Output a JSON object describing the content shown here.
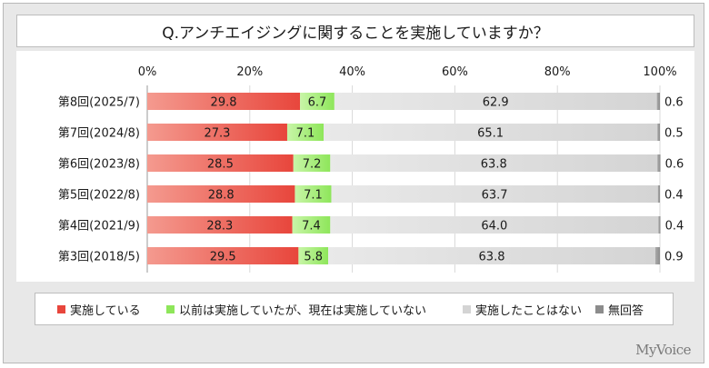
{
  "chart_data": {
    "type": "bar",
    "orientation": "horizontal",
    "stacked": true,
    "title": "Q.アンチエイジングに関することを実施していますか？",
    "categories": [
      "第8回(2025/7)",
      "第7回(2024/8)",
      "第6回(2023/8)",
      "第5回(2022/8)",
      "第4回(2021/9)",
      "第3回(2018/5)"
    ],
    "x_ticks": [
      "0%",
      "20%",
      "40%",
      "60%",
      "80%",
      "100%"
    ],
    "xlim": [
      0,
      100
    ],
    "series": [
      {
        "name": "実施している",
        "color": "#e8463c",
        "values": [
          29.8,
          27.3,
          28.5,
          28.8,
          28.3,
          29.5
        ]
      },
      {
        "name": "以前は実施していたが、現在は実施していない",
        "color": "#8ee65a",
        "values": [
          6.7,
          7.1,
          7.2,
          7.1,
          7.4,
          5.8
        ]
      },
      {
        "name": "実施したことはない",
        "color": "#d4d4d4",
        "values": [
          62.9,
          65.1,
          63.8,
          63.7,
          64.0,
          63.8
        ]
      },
      {
        "name": "無回答",
        "color": "#8c8c8c",
        "values": [
          0.6,
          0.5,
          0.6,
          0.4,
          0.4,
          0.9
        ]
      }
    ],
    "value_labels": [
      [
        "29.8",
        "6.7",
        "62.9",
        "0.6"
      ],
      [
        "27.3",
        "7.1",
        "65.1",
        "0.5"
      ],
      [
        "28.5",
        "7.2",
        "63.8",
        "0.6"
      ],
      [
        "28.8",
        "7.1",
        "63.7",
        "0.4"
      ],
      [
        "28.3",
        "7.4",
        "64.0",
        "0.4"
      ],
      [
        "29.5",
        "5.8",
        "63.8",
        "0.9"
      ]
    ],
    "legend_position": "bottom"
  },
  "brand": "MyVoice"
}
